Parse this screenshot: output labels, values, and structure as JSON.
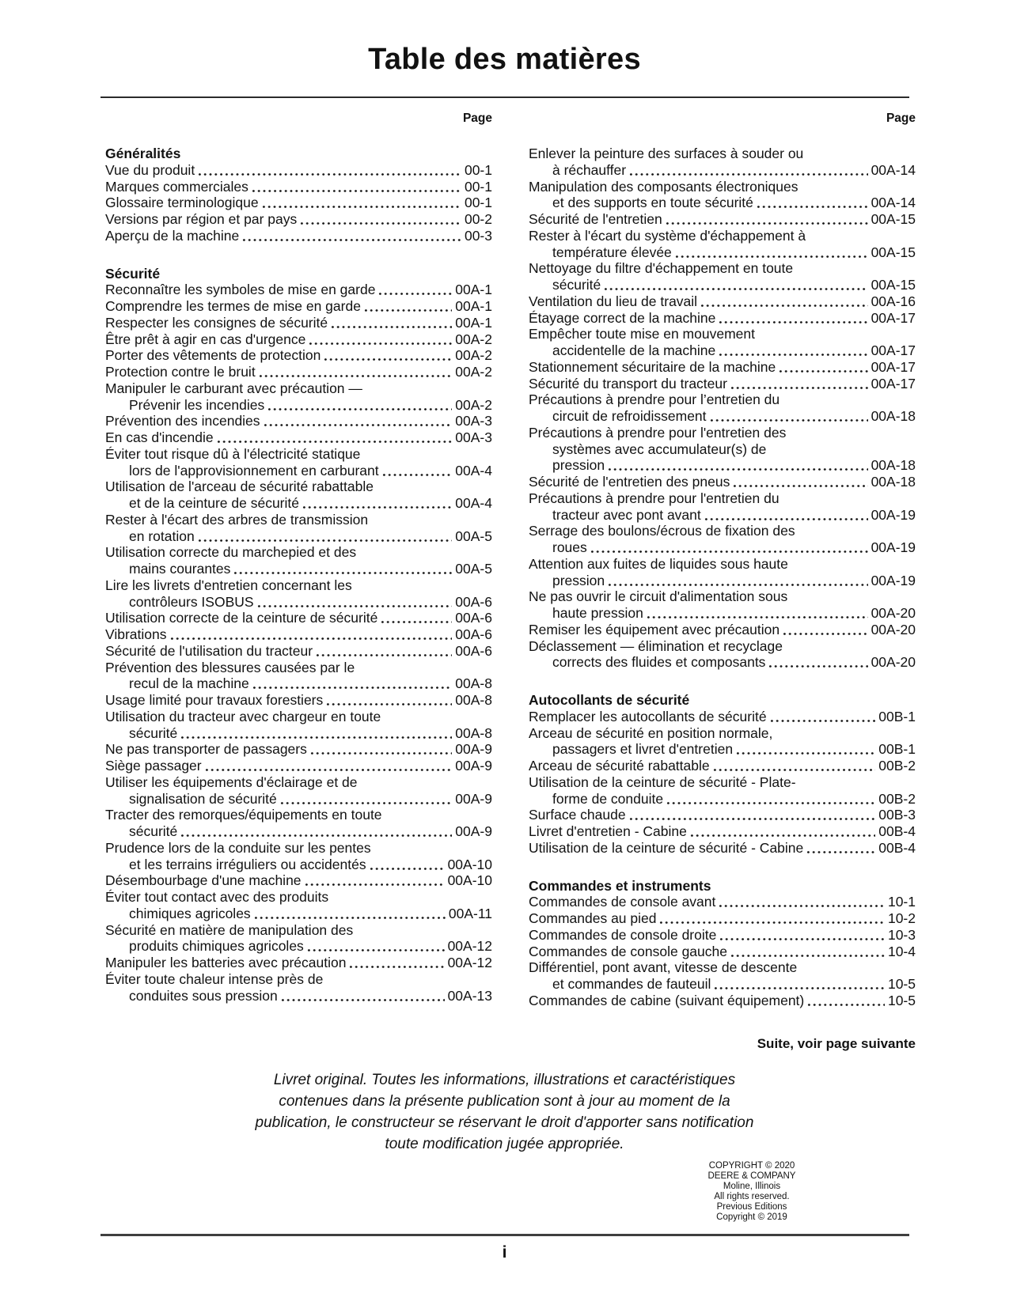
{
  "title": "Table des matières",
  "page_label": "Page",
  "columns": [
    {
      "sections": [
        {
          "heading": "Généralités",
          "entries": [
            {
              "lines": [
                "Vue du produit"
              ],
              "page": "00-1"
            },
            {
              "lines": [
                "Marques commerciales"
              ],
              "page": "00-1"
            },
            {
              "lines": [
                "Glossaire terminologique"
              ],
              "page": "00-1"
            },
            {
              "lines": [
                "Versions par région et par pays"
              ],
              "page": "00-2"
            },
            {
              "lines": [
                "Aperçu de la machine"
              ],
              "page": "00-3"
            }
          ]
        },
        {
          "heading": "Sécurité",
          "entries": [
            {
              "lines": [
                "Reconnaître les symboles de mise en garde"
              ],
              "page": "00A-1"
            },
            {
              "lines": [
                "Comprendre les termes de mise en garde"
              ],
              "page": "00A-1"
            },
            {
              "lines": [
                "Respecter les consignes de sécurité"
              ],
              "page": "00A-1"
            },
            {
              "lines": [
                "Être prêt à agir en cas d'urgence"
              ],
              "page": "00A-2"
            },
            {
              "lines": [
                "Porter des vêtements de protection"
              ],
              "page": "00A-2"
            },
            {
              "lines": [
                "Protection contre le bruit"
              ],
              "page": "00A-2"
            },
            {
              "lines": [
                "Manipuler le carburant avec précaution —",
                "Prévenir les incendies"
              ],
              "page": "00A-2"
            },
            {
              "lines": [
                "Prévention des incendies"
              ],
              "page": "00A-3"
            },
            {
              "lines": [
                "En cas d'incendie"
              ],
              "page": "00A-3"
            },
            {
              "lines": [
                "Éviter tout risque dû à l'électricité statique",
                "lors de l'approvisionnement en carburant"
              ],
              "page": "00A-4"
            },
            {
              "lines": [
                "Utilisation de l'arceau de sécurité rabattable",
                "et de la ceinture de sécurité"
              ],
              "page": "00A-4"
            },
            {
              "lines": [
                "Rester à l'écart des arbres de transmission",
                "en rotation"
              ],
              "page": "00A-5"
            },
            {
              "lines": [
                "Utilisation correcte du marchepied et des",
                "mains courantes"
              ],
              "page": "00A-5"
            },
            {
              "lines": [
                "Lire les livrets d'entretien concernant les",
                "contrôleurs ISOBUS"
              ],
              "page": "00A-6"
            },
            {
              "lines": [
                "Utilisation correcte de la ceinture de sécurité"
              ],
              "page": "00A-6"
            },
            {
              "lines": [
                "Vibrations"
              ],
              "page": "00A-6"
            },
            {
              "lines": [
                "Sécurité de l'utilisation du tracteur"
              ],
              "page": "00A-6"
            },
            {
              "lines": [
                "Prévention des blessures causées par le",
                "recul de la machine"
              ],
              "page": "00A-8"
            },
            {
              "lines": [
                "Usage limité pour travaux forestiers"
              ],
              "page": "00A-8"
            },
            {
              "lines": [
                "Utilisation du tracteur avec chargeur en toute",
                "sécurité"
              ],
              "page": "00A-8"
            },
            {
              "lines": [
                "Ne pas transporter de passagers"
              ],
              "page": "00A-9"
            },
            {
              "lines": [
                "Siège passager"
              ],
              "page": "00A-9"
            },
            {
              "lines": [
                "Utiliser les équipements d'éclairage et de",
                "signalisation de sécurité"
              ],
              "page": "00A-9"
            },
            {
              "lines": [
                "Tracter des remorques/équipements en toute",
                "sécurité"
              ],
              "page": "00A-9"
            },
            {
              "lines": [
                "Prudence lors de la conduite sur les pentes",
                "et les terrains irréguliers ou accidentés"
              ],
              "page": "00A-10"
            },
            {
              "lines": [
                "Désembourbage d'une machine"
              ],
              "page": "00A-10"
            },
            {
              "lines": [
                "Éviter tout contact avec des produits",
                "chimiques agricoles"
              ],
              "page": "00A-11"
            },
            {
              "lines": [
                "Sécurité en matière de manipulation des",
                "produits chimiques agricoles"
              ],
              "page": "00A-12"
            },
            {
              "lines": [
                "Manipuler les batteries avec précaution"
              ],
              "page": "00A-12"
            },
            {
              "lines": [
                "Éviter toute chaleur intense près de",
                "conduites sous pression"
              ],
              "page": "00A-13"
            }
          ]
        }
      ]
    },
    {
      "sections": [
        {
          "heading": null,
          "entries": [
            {
              "lines": [
                "Enlever la peinture des surfaces à souder ou",
                "à réchauffer"
              ],
              "page": "00A-14"
            },
            {
              "lines": [
                "Manipulation des composants électroniques",
                "et des supports en toute sécurité"
              ],
              "page": "00A-14"
            },
            {
              "lines": [
                "Sécurité de l'entretien"
              ],
              "page": "00A-15"
            },
            {
              "lines": [
                "Rester à l'écart du système d'échappement à",
                "température élevée"
              ],
              "page": "00A-15"
            },
            {
              "lines": [
                "Nettoyage du filtre d'échappement en toute",
                "sécurité"
              ],
              "page": "00A-15"
            },
            {
              "lines": [
                "Ventilation du lieu de travail"
              ],
              "page": "00A-16"
            },
            {
              "lines": [
                "Étayage correct de la machine"
              ],
              "page": "00A-17"
            },
            {
              "lines": [
                "Empêcher toute mise en mouvement",
                "accidentelle de la machine"
              ],
              "page": "00A-17"
            },
            {
              "lines": [
                "Stationnement sécuritaire de la machine"
              ],
              "page": "00A-17"
            },
            {
              "lines": [
                "Sécurité du transport du tracteur"
              ],
              "page": "00A-17"
            },
            {
              "lines": [
                "Précautions à prendre pour l’entretien du",
                "circuit de refroidissement"
              ],
              "page": "00A-18"
            },
            {
              "lines": [
                "Précautions à prendre pour l'entretien des",
                "systèmes avec accumulateur(s) de",
                "pression"
              ],
              "page": "00A-18"
            },
            {
              "lines": [
                "Sécurité de l'entretien des pneus"
              ],
              "page": "00A-18"
            },
            {
              "lines": [
                "Précautions à prendre pour l'entretien du",
                "tracteur avec pont avant"
              ],
              "page": "00A-19"
            },
            {
              "lines": [
                "Serrage des boulons/écrous de fixation des",
                "roues"
              ],
              "page": "00A-19"
            },
            {
              "lines": [
                "Attention aux fuites de liquides sous haute",
                "pression"
              ],
              "page": "00A-19"
            },
            {
              "lines": [
                "Ne pas ouvrir le circuit d'alimentation sous",
                "haute pression"
              ],
              "page": "00A-20"
            },
            {
              "lines": [
                "Remiser les équipement avec précaution"
              ],
              "page": "00A-20"
            },
            {
              "lines": [
                "Déclassement — élimination et recyclage",
                "corrects des fluides et composants"
              ],
              "page": "00A-20"
            }
          ]
        },
        {
          "heading": "Autocollants de sécurité",
          "entries": [
            {
              "lines": [
                "Remplacer les autocollants de sécurité"
              ],
              "page": "00B-1"
            },
            {
              "lines": [
                "Arceau de sécurité en position normale,",
                "passagers et livret d'entretien"
              ],
              "page": "00B-1"
            },
            {
              "lines": [
                "Arceau de sécurité rabattable"
              ],
              "page": "00B-2"
            },
            {
              "lines": [
                "Utilisation de la ceinture de sécurité - Plate-",
                "forme de conduite"
              ],
              "page": "00B-2"
            },
            {
              "lines": [
                "Surface chaude"
              ],
              "page": "00B-3"
            },
            {
              "lines": [
                "Livret d'entretien - Cabine"
              ],
              "page": "00B-4"
            },
            {
              "lines": [
                "Utilisation de la ceinture de sécurité - Cabine"
              ],
              "page": "00B-4"
            }
          ]
        },
        {
          "heading": "Commandes et instruments",
          "entries": [
            {
              "lines": [
                "Commandes de console avant"
              ],
              "page": "10-1"
            },
            {
              "lines": [
                "Commandes au pied"
              ],
              "page": "10-2"
            },
            {
              "lines": [
                "Commandes de console droite"
              ],
              "page": "10-3"
            },
            {
              "lines": [
                "Commandes de console gauche"
              ],
              "page": "10-4"
            },
            {
              "lines": [
                "Différentiel, pont avant, vitesse de descente",
                "et commandes de fauteuil"
              ],
              "page": "10-5"
            },
            {
              "lines": [
                "Commandes de cabine (suivant équipement)"
              ],
              "page": "10-5"
            }
          ]
        }
      ]
    }
  ],
  "continuation_note": "Suite, voir page suivante",
  "original_notice_lines": [
    "Livret original. Toutes les informations, illustrations et caractéristiques",
    "contenues dans la présente publication sont à jour au moment de la",
    "publication, le constructeur se réservant le droit d'apporter sans notification",
    "toute modification jugée appropriée."
  ],
  "copyright_lines": [
    "COPYRIGHT © 2020",
    "DEERE & COMPANY",
    "Moline, Illinois",
    "All rights reserved.",
    "Previous Editions",
    "Copyright © 2019"
  ],
  "page_number": "i"
}
